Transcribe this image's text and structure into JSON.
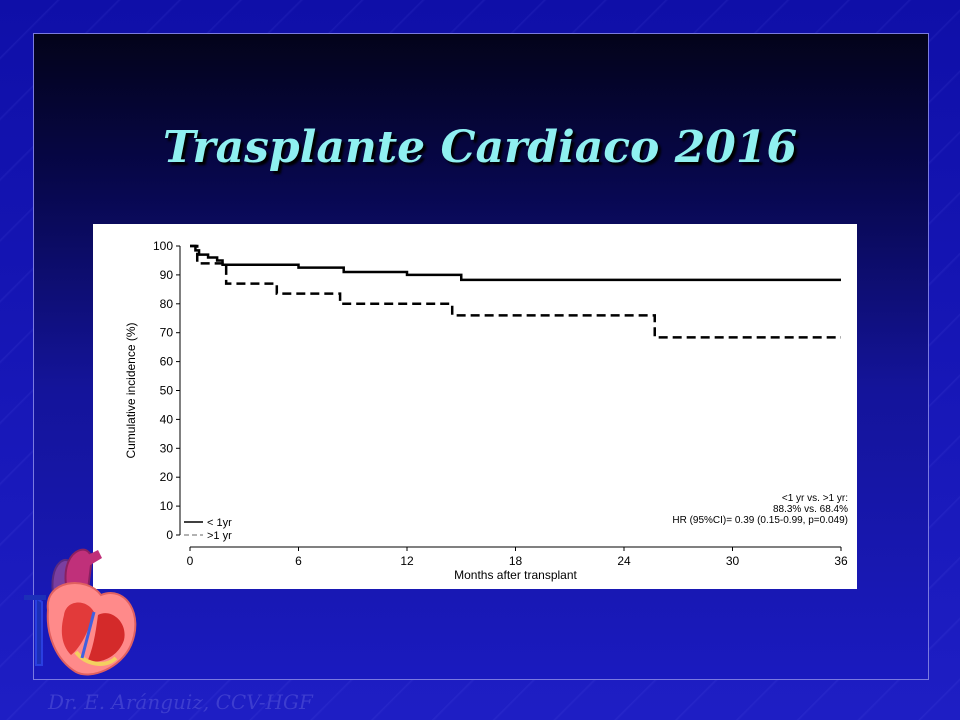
{
  "slide": {
    "title": "Trasplante Cardiaco 2016",
    "footer": "Dr. E. Aránguiz, CCV-HGF"
  },
  "colors": {
    "background": "#1a1ab8",
    "title": "#8ff0f0",
    "footer": "#3d3dcf"
  },
  "decor": {
    "heart_icon": "heart-anatomy-icon"
  },
  "chart_data": {
    "type": "line",
    "title": "",
    "xlabel": "Months after transplant",
    "ylabel": "Cumulative incidence (%)",
    "xlim": [
      0,
      36
    ],
    "ylim": [
      0,
      100
    ],
    "xticks": [
      0,
      6,
      12,
      18,
      24,
      30,
      36
    ],
    "yticks": [
      0,
      10,
      20,
      30,
      40,
      50,
      60,
      70,
      80,
      90,
      100
    ],
    "grid": false,
    "legend_position": "bottom-left",
    "series": [
      {
        "name": "< 1yr",
        "style": "solid",
        "color": "#000000",
        "x": [
          0,
          0.3,
          0.5,
          1.0,
          1.5,
          1.8,
          6.0,
          8.5,
          12.0,
          15.0,
          36.0
        ],
        "y": [
          100,
          98.5,
          97,
          96,
          95,
          93.5,
          92.5,
          91,
          90,
          88.3,
          88.3
        ]
      },
      {
        "name": ">1 yr",
        "style": "dashed",
        "color": "#000000",
        "x": [
          0,
          0.4,
          2.0,
          4.8,
          8.3,
          14.5,
          25.7,
          36.0
        ],
        "y": [
          100,
          94,
          87,
          83.5,
          80,
          76,
          68.4,
          68.4
        ]
      }
    ],
    "annotations": [
      "<1 yr vs. >1 yr:",
      "88.3% vs. 68.4%",
      "HR (95%CI)= 0.39 (0.15-0.99, p=0.049)"
    ]
  }
}
